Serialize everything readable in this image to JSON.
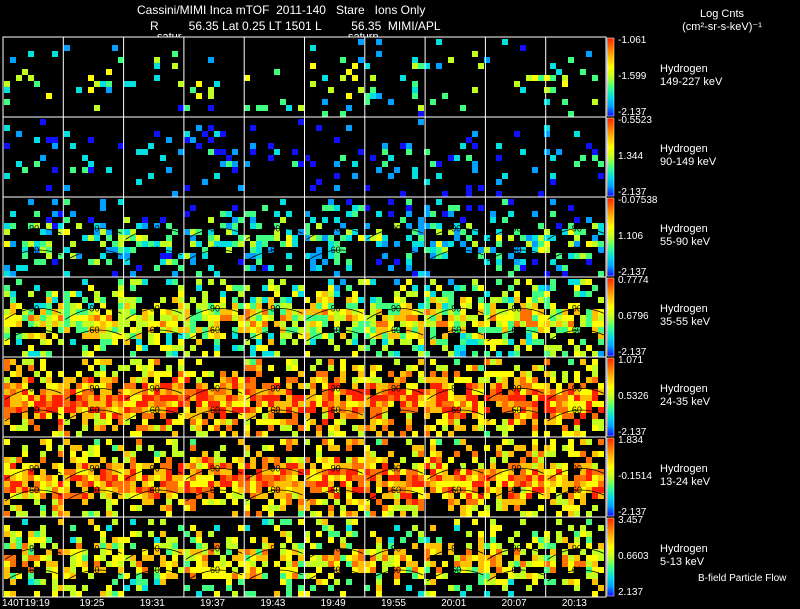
{
  "header": {
    "line1": "Cassini/MIMI Inca mTOF  2011-140   Stare   Ions Only",
    "line2": "R         56.35 Lat 0.25 LT 1501 L         56.35  MIMI/APL",
    "units_line1": "Log Cnts",
    "units_line2": "(cm²-sr-s-keV)⁻¹",
    "saturn_marks": [
      "satur",
      "saturn"
    ]
  },
  "chart_data": {
    "type": "heatmap",
    "title": "Cassini/MIMI Inca mTOF  2011-140   Stare   Ions Only",
    "time_labels": [
      "140T19:19",
      "19:25",
      "19:31",
      "19:37",
      "19:43",
      "19:49",
      "19:55",
      "20:01",
      "20:07",
      "20:13"
    ],
    "contour_labels": [
      "30",
      "60",
      "90"
    ],
    "colorscale": [
      "#1010ff",
      "#00a0ff",
      "#00e0e0",
      "#40ff80",
      "#c0ff20",
      "#ffff00",
      "#ffc000",
      "#ff7000",
      "#ff2000"
    ],
    "panels": [
      {
        "species": "Hydrogen",
        "energy": "149-227 keV",
        "cb_max": "-1.061",
        "cb_mid": "-1.599",
        "cb_min": "-2.137",
        "level": 0.35,
        "fill": 0.1
      },
      {
        "species": "Hydrogen",
        "energy": "90-149 keV",
        "cb_max": "-0.5523",
        "cb_mid": "1.344",
        "cb_min": "-2.137",
        "level": 0.12,
        "fill": 0.12
      },
      {
        "species": "Hydrogen",
        "energy": "55-90 keV",
        "cb_max": "-0.07538",
        "cb_mid": "1.106",
        "cb_min": "-2.137",
        "level": 0.28,
        "fill": 0.35
      },
      {
        "species": "Hydrogen",
        "energy": "35-55 keV",
        "cb_max": "0.7774",
        "cb_mid": "0.6796",
        "cb_min": "-2.137",
        "level": 0.5,
        "fill": 0.7
      },
      {
        "species": "Hydrogen",
        "energy": "24-35 keV",
        "cb_max": "1.071",
        "cb_mid": "0.5326",
        "cb_min": "-2.137",
        "level": 0.72,
        "fill": 0.75
      },
      {
        "species": "Hydrogen",
        "energy": "13-24 keV",
        "cb_max": "1.834",
        "cb_mid": "-0.1514",
        "cb_min": "-2.137",
        "level": 0.7,
        "fill": 0.75
      },
      {
        "species": "Hydrogen",
        "energy": "5-13 keV",
        "cb_max": "3.457",
        "cb_mid": "0.6603",
        "cb_min": "2.137",
        "level": 0.55,
        "fill": 0.55
      }
    ]
  },
  "footer": {
    "bfield_label": "B-field Particle Flow"
  }
}
